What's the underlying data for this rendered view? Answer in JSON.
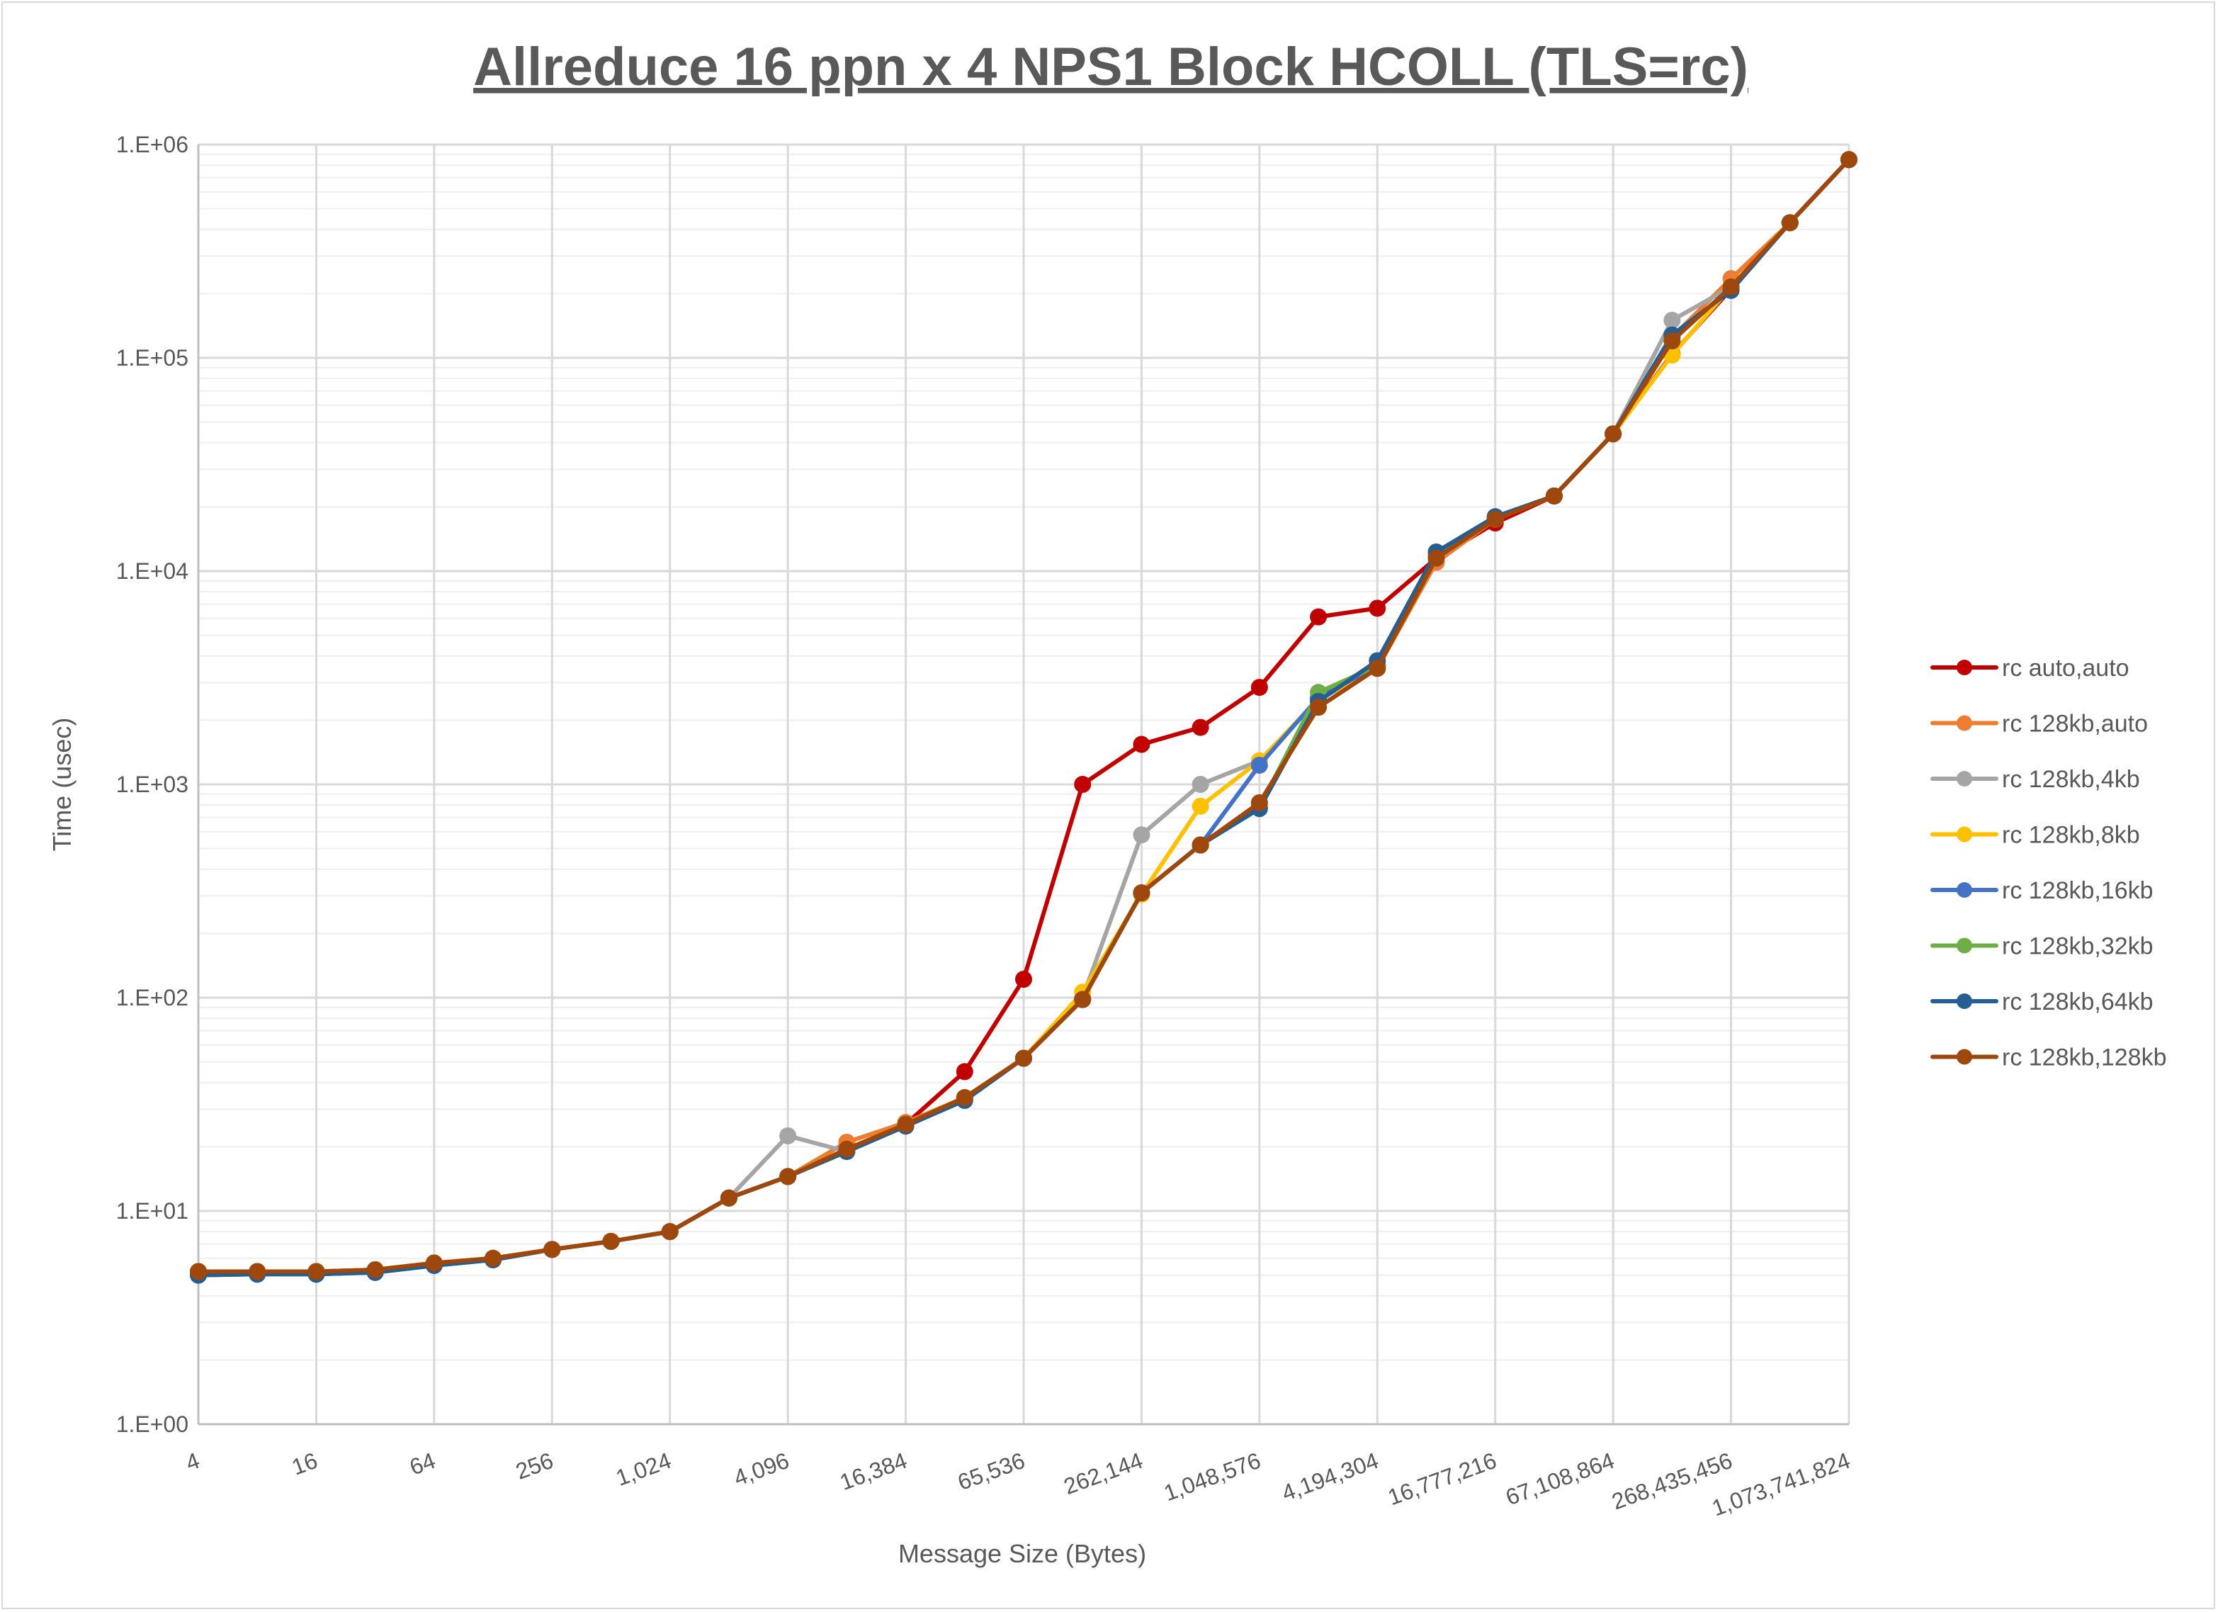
{
  "chart_data": {
    "type": "line",
    "title": "Allreduce 16 ppn x 4 NPS1 Block HCOLL (TLS=rc)",
    "xlabel": "Message Size (Bytes)",
    "ylabel": "Time (usec)",
    "yscale": "log",
    "ylim": [
      1,
      1000000
    ],
    "grid": true,
    "legend_position": "right",
    "y_tick_labels": [
      "1.E+00",
      "1.E+01",
      "1.E+02",
      "1.E+03",
      "1.E+04",
      "1.E+05",
      "1.E+06"
    ],
    "x_tick_labels": [
      "4",
      "16",
      "64",
      "256",
      "1,024",
      "4,096",
      "16,384",
      "65,536",
      "262,144",
      "1,048,576",
      "4,194,304",
      "16,777,216",
      "67,108,864",
      "268,435,456",
      "1,073,741,824"
    ],
    "x": [
      4,
      8,
      16,
      32,
      64,
      128,
      256,
      512,
      1024,
      2048,
      4096,
      8192,
      16384,
      32768,
      65536,
      131072,
      262144,
      524288,
      1048576,
      2097152,
      4194304,
      8388608,
      16777216,
      33554432,
      67108864,
      134217728,
      268435456,
      536870912,
      1073741824
    ],
    "series": [
      {
        "name": "rc auto,auto",
        "color": "#c00000",
        "values": [
          5.2,
          5.2,
          5.2,
          5.3,
          5.7,
          6.0,
          6.6,
          7.2,
          8.0,
          11.5,
          14.5,
          19.5,
          25.5,
          45,
          122,
          1000,
          1540,
          1850,
          2850,
          6100,
          6700,
          11500,
          16800,
          22500,
          44000,
          104000,
          210000,
          430000,
          850000
        ]
      },
      {
        "name": "rc 128kb,auto",
        "color": "#ed7d31",
        "values": [
          5.2,
          5.2,
          5.2,
          5.3,
          5.7,
          6.0,
          6.6,
          7.2,
          8.0,
          11.5,
          14.5,
          21,
          26,
          34,
          52,
          98,
          310,
          520,
          820,
          2300,
          3500,
          11000,
          17500,
          22500,
          44000,
          125000,
          235000,
          430000,
          850000
        ]
      },
      {
        "name": "rc 128kb,4kb",
        "color": "#a5a5a5",
        "values": [
          5.2,
          5.2,
          5.2,
          5.3,
          5.7,
          6.0,
          6.6,
          7.2,
          8.0,
          11.5,
          22.5,
          19,
          25.5,
          34,
          52,
          100,
          580,
          1000,
          1290,
          2500,
          3600,
          11500,
          17500,
          22500,
          44000,
          150000,
          215000,
          430000,
          850000
        ]
      },
      {
        "name": "rc 128kb,8kb",
        "color": "#ffc000",
        "values": [
          5.2,
          5.2,
          5.2,
          5.3,
          5.7,
          6.0,
          6.6,
          7.2,
          8.0,
          11.5,
          14.5,
          19.5,
          25.5,
          34,
          52,
          106,
          305,
          790,
          1290,
          2500,
          3500,
          11500,
          17500,
          22500,
          44000,
          103000,
          215000,
          430000,
          850000
        ]
      },
      {
        "name": "rc 128kb,16kb",
        "color": "#4472c4",
        "values": [
          5.0,
          5.05,
          5.05,
          5.15,
          5.55,
          5.9,
          6.6,
          7.2,
          8.0,
          11.5,
          14.5,
          19,
          25,
          33,
          52,
          98,
          310,
          520,
          1230,
          2550,
          3600,
          11800,
          17800,
          22500,
          44000,
          125000,
          210000,
          430000,
          850000
        ]
      },
      {
        "name": "rc 128kb,32kb",
        "color": "#70ad47",
        "values": [
          5.0,
          5.05,
          5.05,
          5.15,
          5.55,
          5.9,
          6.6,
          7.2,
          8.0,
          11.5,
          14.5,
          19,
          25,
          33,
          52,
          98,
          310,
          520,
          780,
          2700,
          3600,
          11800,
          17800,
          22500,
          44000,
          125000,
          210000,
          430000,
          850000
        ]
      },
      {
        "name": "rc 128kb,64kb",
        "color": "#255e91",
        "values": [
          5.0,
          5.05,
          5.05,
          5.15,
          5.55,
          5.9,
          6.6,
          7.2,
          8.0,
          11.5,
          14.5,
          19,
          25,
          33,
          52,
          98,
          310,
          520,
          770,
          2450,
          3800,
          12300,
          18000,
          22500,
          44000,
          128000,
          207000,
          430000,
          850000
        ]
      },
      {
        "name": "rc 128kb,128kb",
        "color": "#9e480e",
        "values": [
          5.2,
          5.2,
          5.2,
          5.3,
          5.7,
          6.0,
          6.6,
          7.2,
          8.0,
          11.5,
          14.5,
          19.5,
          25.5,
          34,
          52,
          98,
          310,
          520,
          820,
          2300,
          3500,
          11500,
          17500,
          22500,
          44000,
          120000,
          215000,
          430000,
          850000
        ]
      }
    ]
  }
}
